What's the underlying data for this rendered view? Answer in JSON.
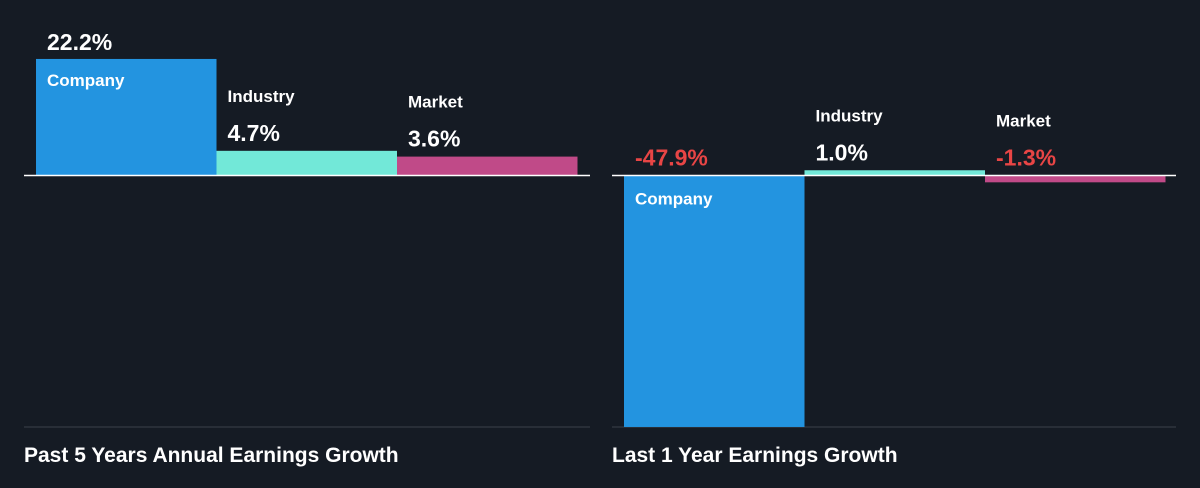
{
  "colors": {
    "background": "#151b24",
    "company": "#2394e0",
    "industry": "#72e8d8",
    "market": "#c04a88",
    "axis": "#ffffff",
    "divider": "#3a404a",
    "negative_text": "#e84545",
    "positive_text": "#ffffff"
  },
  "chart_data": [
    {
      "type": "bar",
      "title": "Past 5 Years Annual Earnings Growth",
      "categories": [
        "Company",
        "Industry",
        "Market"
      ],
      "values": [
        22.2,
        4.7,
        3.6
      ],
      "value_labels": [
        "22.2%",
        "4.7%",
        "3.6%"
      ],
      "unit": "%",
      "grid": false,
      "legend": "none"
    },
    {
      "type": "bar",
      "title": "Last 1 Year Earnings Growth",
      "categories": [
        "Company",
        "Industry",
        "Market"
      ],
      "values": [
        -47.9,
        1.0,
        -1.3
      ],
      "value_labels": [
        "-47.9%",
        "1.0%",
        "-1.3%"
      ],
      "unit": "%",
      "grid": false,
      "legend": "none"
    }
  ]
}
